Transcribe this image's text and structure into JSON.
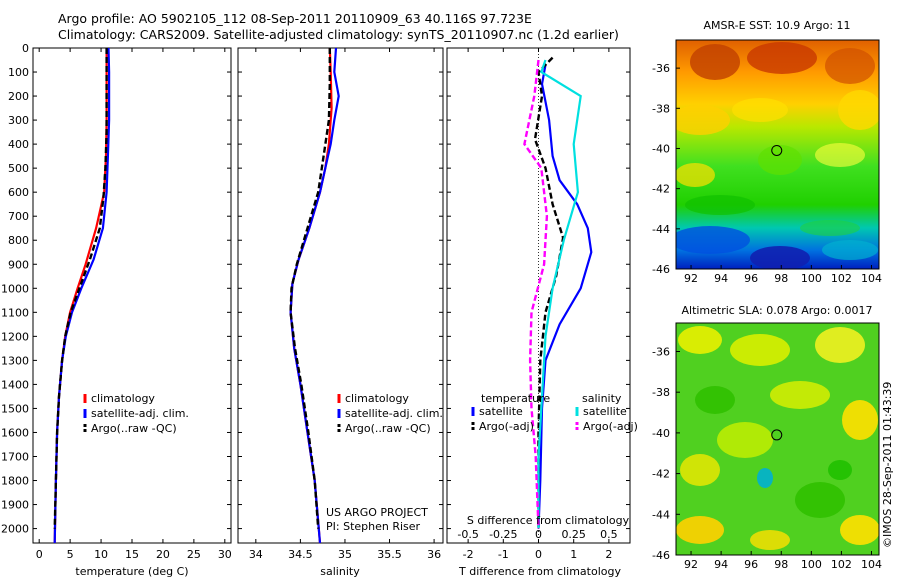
{
  "header": {
    "line1": "Argo profile: AO 5902105_112 08-Sep-2011 20110909_63 40.116S 97.723E",
    "line2": "Climatology: CARS2009. Satellite-adjusted climatology: synTS_20110907.nc (1.2d earlier)"
  },
  "colors": {
    "climatology": "#ff0000",
    "satellite": "#0000ff",
    "argo": "#000000",
    "sat_salinity": "#00e0e0",
    "argo_salinity": "#ff00ff"
  },
  "chart_data": [
    {
      "type": "line",
      "name": "temperature",
      "xlabel": "temperature (deg C)",
      "ylabel": "",
      "xlim": [
        -1,
        31
      ],
      "ylim": [
        2060,
        0
      ],
      "xticks": [
        0,
        5,
        10,
        15,
        20,
        25,
        30
      ],
      "yticks": [
        0,
        100,
        200,
        300,
        400,
        500,
        600,
        700,
        800,
        900,
        1000,
        1100,
        1200,
        1300,
        1400,
        1500,
        1600,
        1700,
        1800,
        1900,
        2000
      ],
      "legend": {
        "position": "bottom-center",
        "entries": [
          "climatology",
          "satellite-adj. clim.",
          "Argo(..raw -QC)"
        ]
      },
      "series": [
        {
          "name": "climatology",
          "style": "solid",
          "color": "#ff0000",
          "points": [
            [
              10.9,
              0
            ],
            [
              10.9,
              100
            ],
            [
              10.9,
              300
            ],
            [
              10.8,
              450
            ],
            [
              10.5,
              600
            ],
            [
              9.2,
              750
            ],
            [
              7.5,
              900
            ],
            [
              6.2,
              1000
            ],
            [
              5.0,
              1100
            ],
            [
              4.2,
              1200
            ],
            [
              3.7,
              1300
            ],
            [
              3.2,
              1450
            ],
            [
              2.9,
              1600
            ],
            [
              2.7,
              1800
            ],
            [
              2.5,
              2060
            ]
          ]
        },
        {
          "name": "satellite-adj. clim.",
          "style": "solid",
          "color": "#0000ff",
          "points": [
            [
              11.2,
              0
            ],
            [
              11.3,
              100
            ],
            [
              11.3,
              300
            ],
            [
              11.1,
              450
            ],
            [
              10.9,
              600
            ],
            [
              10.3,
              750
            ],
            [
              8.8,
              880
            ],
            [
              6.8,
              1000
            ],
            [
              5.3,
              1100
            ],
            [
              4.3,
              1200
            ],
            [
              3.7,
              1300
            ],
            [
              3.2,
              1450
            ],
            [
              2.9,
              1600
            ],
            [
              2.7,
              1800
            ],
            [
              2.5,
              2060
            ]
          ]
        },
        {
          "name": "Argo(..raw -QC)",
          "style": "dash",
          "color": "#000000",
          "points": [
            [
              10.9,
              0
            ],
            [
              10.9,
              150
            ],
            [
              10.9,
              350
            ],
            [
              10.7,
              500
            ],
            [
              10.4,
              620
            ],
            [
              9.8,
              750
            ],
            [
              8.2,
              880
            ],
            [
              6.5,
              1000
            ],
            [
              5.1,
              1100
            ],
            [
              4.2,
              1200
            ],
            [
              3.7,
              1300
            ],
            [
              3.2,
              1450
            ],
            [
              2.9,
              1600
            ],
            [
              2.7,
              1800
            ],
            [
              2.5,
              2000
            ]
          ]
        }
      ]
    },
    {
      "type": "line",
      "name": "salinity",
      "xlabel": "salinity",
      "ylabel": "",
      "xlim": [
        33.8,
        36.1
      ],
      "ylim": [
        2060,
        0
      ],
      "xticks": [
        34,
        34.5,
        35,
        35.5,
        36
      ],
      "xtick_labels": [
        "34",
        "34.5",
        "35",
        "35.5",
        "36"
      ],
      "legend": {
        "position": "bottom-center",
        "entries": [
          "climatology",
          "satellite-adj. clim.",
          "Argo(..raw -QC)"
        ]
      },
      "annotation": [
        "US ARGO PROJECT",
        "PI: Stephen Riser"
      ],
      "series": [
        {
          "name": "climatology",
          "style": "solid",
          "color": "#ff0000",
          "points": [
            [
              34.83,
              0
            ],
            [
              34.84,
              100
            ],
            [
              34.85,
              250
            ],
            [
              34.82,
              400
            ],
            [
              34.78,
              500
            ],
            [
              34.72,
              600
            ],
            [
              34.6,
              750
            ],
            [
              34.48,
              880
            ],
            [
              34.41,
              980
            ],
            [
              34.39,
              1100
            ],
            [
              34.43,
              1250
            ],
            [
              34.5,
              1400
            ],
            [
              34.58,
              1600
            ],
            [
              34.66,
              1800
            ],
            [
              34.72,
              2060
            ]
          ]
        },
        {
          "name": "satellite-adj. clim.",
          "style": "solid",
          "color": "#0000ff",
          "points": [
            [
              34.9,
              0
            ],
            [
              34.88,
              100
            ],
            [
              34.93,
              200
            ],
            [
              34.88,
              300
            ],
            [
              34.84,
              400
            ],
            [
              34.78,
              500
            ],
            [
              34.72,
              600
            ],
            [
              34.6,
              750
            ],
            [
              34.48,
              880
            ],
            [
              34.41,
              980
            ],
            [
              34.39,
              1100
            ],
            [
              34.43,
              1250
            ],
            [
              34.5,
              1400
            ],
            [
              34.58,
              1600
            ],
            [
              34.66,
              1800
            ],
            [
              34.72,
              2060
            ]
          ]
        },
        {
          "name": "Argo(..raw -QC)",
          "style": "dash",
          "color": "#000000",
          "points": [
            [
              34.83,
              0
            ],
            [
              34.83,
              150
            ],
            [
              34.82,
              300
            ],
            [
              34.76,
              450
            ],
            [
              34.7,
              600
            ],
            [
              34.58,
              750
            ],
            [
              34.46,
              900
            ],
            [
              34.4,
              1000
            ],
            [
              34.39,
              1100
            ],
            [
              34.44,
              1250
            ],
            [
              34.51,
              1400
            ],
            [
              34.59,
              1600
            ],
            [
              34.66,
              1800
            ],
            [
              34.7,
              2000
            ]
          ]
        }
      ]
    },
    {
      "type": "line",
      "name": "differences",
      "xlabel": "T difference from climatology",
      "xlabel_top": "S difference from climatology",
      "xlim": [
        -2.6,
        2.6
      ],
      "ylim": [
        2060,
        0
      ],
      "xticks": [
        -2,
        -1,
        0,
        1,
        2
      ],
      "xticks_top": [
        -0.5,
        -0.25,
        0,
        0.25,
        0.5
      ],
      "xtick_labels_top": [
        "-0.5",
        "-0.25",
        "0",
        "0.25",
        "0.5"
      ],
      "legend": {
        "position": "bottom-center",
        "groups": [
          {
            "title": "temperature",
            "entries": [
              "satellite",
              "Argo(-adj)"
            ]
          },
          {
            "title": "salinity",
            "entries": [
              "satellite",
              "Argo(-adj)"
            ]
          }
        ]
      },
      "series": [
        {
          "name": "temperature satellite",
          "style": "solid",
          "color": "#0000ff",
          "points": [
            [
              0.2,
              70
            ],
            [
              0.1,
              150
            ],
            [
              0.3,
              300
            ],
            [
              0.4,
              450
            ],
            [
              0.6,
              550
            ],
            [
              1.1,
              650
            ],
            [
              1.4,
              750
            ],
            [
              1.5,
              850
            ],
            [
              1.2,
              1000
            ],
            [
              0.6,
              1150
            ],
            [
              0.2,
              1300
            ],
            [
              0.1,
              1500
            ],
            [
              0.05,
              1800
            ],
            [
              0,
              2000
            ]
          ]
        },
        {
          "name": "temperature Argo(-adj)",
          "style": "dash",
          "color": "#000000",
          "points": [
            [
              0.4,
              40
            ],
            [
              0,
              100
            ],
            [
              0.1,
              200
            ],
            [
              -0.1,
              380
            ],
            [
              0.2,
              500
            ],
            [
              0.4,
              650
            ],
            [
              0.7,
              790
            ],
            [
              0.5,
              950
            ],
            [
              0.2,
              1100
            ],
            [
              0.05,
              1300
            ],
            [
              0,
              1600
            ],
            [
              0,
              2000
            ]
          ]
        },
        {
          "name": "salinity satellite",
          "style": "solid",
          "color": "#00e0e0",
          "points": [
            [
              0.05,
              50
            ],
            [
              0.02,
              100
            ],
            [
              0.3,
              200
            ],
            [
              0.25,
              400
            ],
            [
              0.28,
              600
            ],
            [
              0.18,
              800
            ],
            [
              0.1,
              1000
            ],
            [
              0.05,
              1200
            ],
            [
              0.03,
              1400
            ],
            [
              0,
              1700
            ],
            [
              0,
              2000
            ]
          ]
        },
        {
          "name": "salinity Argo(-adj)",
          "style": "dash",
          "color": "#ff00ff",
          "points": [
            [
              0,
              50
            ],
            [
              -0.03,
              200
            ],
            [
              -0.1,
              400
            ],
            [
              0.02,
              500
            ],
            [
              0.06,
              700
            ],
            [
              0.04,
              900
            ],
            [
              -0.05,
              1100
            ],
            [
              -0.06,
              1300
            ],
            [
              -0.05,
              1500
            ],
            [
              -0.02,
              1700
            ],
            [
              0,
              2000
            ]
          ]
        }
      ],
      "legend_items": {
        "temp_title": "temperature",
        "sal_title": "salinity",
        "temp_sat": "satellite",
        "temp_argo": "Argo(-adj)",
        "sal_sat": "satellite",
        "sal_argo": "Argo(-adj)"
      }
    },
    {
      "type": "heatmap",
      "name": "sst",
      "title": "AMSR-E SST: 10.9 Argo: 11",
      "xlim": [
        91,
        104.5
      ],
      "ylim": [
        -46,
        -34.6
      ],
      "xticks": [
        92,
        94,
        96,
        98,
        100,
        102,
        104
      ],
      "yticks": [
        -36,
        -38,
        -40,
        -42,
        -44,
        -46
      ],
      "marker": {
        "x": 97.7,
        "y": -40.1
      }
    },
    {
      "type": "heatmap",
      "name": "sla",
      "title": "Altimetric SLA: 0.078 Argo: 0.0017",
      "xlim": [
        91,
        104.5
      ],
      "ylim": [
        -46,
        -34.6
      ],
      "xticks": [
        92,
        94,
        96,
        98,
        100,
        102,
        104
      ],
      "yticks": [
        -36,
        -38,
        -40,
        -42,
        -44,
        -46
      ],
      "marker": {
        "x": 97.7,
        "y": -40.1
      }
    }
  ],
  "stamp": "©IMOS 28-Sep-2011 01:43:39"
}
